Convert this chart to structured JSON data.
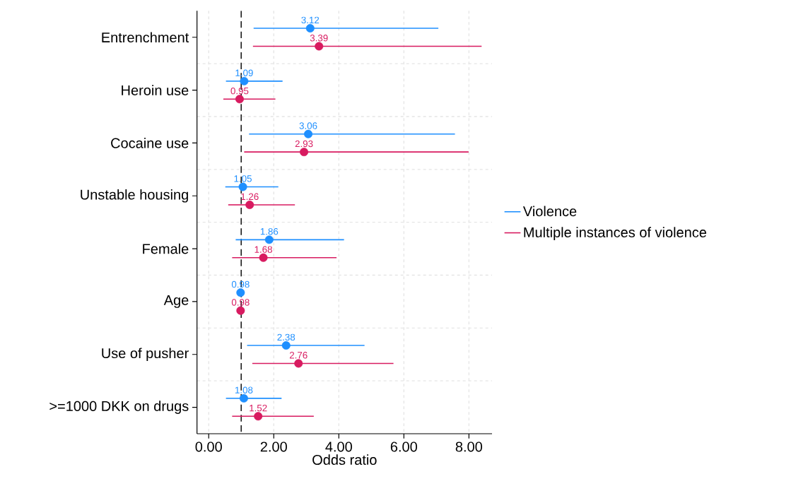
{
  "chart_data": {
    "type": "scatter",
    "orientation": "horizontal",
    "categories": [
      "Entrenchment",
      "Heroin use",
      "Cocaine use",
      "Unstable housing",
      "Female",
      "Age",
      "Use of pusher",
      ">=1000 DKK on drugs"
    ],
    "series": [
      {
        "name": "Violence",
        "color": "#1e8fff",
        "values": [
          3.12,
          1.09,
          3.06,
          1.05,
          1.86,
          0.98,
          2.38,
          1.08
        ],
        "value_labels": [
          "3.12",
          "1.09",
          "3.06",
          "1.05",
          "1.86",
          "0.98",
          "2.38",
          "1.08"
        ],
        "errors": [
          [
            1.38,
            7.06
          ],
          [
            0.53,
            2.27
          ],
          [
            1.24,
            7.57
          ],
          [
            0.51,
            2.14
          ],
          [
            0.83,
            4.16
          ],
          null,
          [
            1.18,
            4.79
          ],
          [
            0.53,
            2.24
          ]
        ]
      },
      {
        "name": "Multiple instances of violence",
        "color": "#d81b60",
        "values": [
          3.39,
          0.95,
          2.93,
          1.26,
          1.68,
          0.98,
          2.76,
          1.52
        ],
        "value_labels": [
          "3.39",
          "0.95",
          "2.93",
          "1.26",
          "1.68",
          "0.98",
          "2.76",
          "1.52"
        ],
        "errors": [
          [
            1.36,
            8.39
          ],
          [
            0.45,
            2.05
          ],
          [
            1.09,
            7.99
          ],
          [
            0.6,
            2.65
          ],
          [
            0.72,
            3.93
          ],
          null,
          [
            1.34,
            5.68
          ],
          [
            0.72,
            3.23
          ]
        ]
      }
    ],
    "xlabel": "Odds ratio",
    "xlim": [
      -0.36,
      8.71
    ],
    "xticks": [
      {
        "value": 0,
        "label": "0.00"
      },
      {
        "value": 2,
        "label": "2.00"
      },
      {
        "value": 4,
        "label": "4.00"
      },
      {
        "value": 6,
        "label": "6.00"
      },
      {
        "value": 8,
        "label": "8.00"
      }
    ],
    "ref_lines": [
      {
        "axis": "x",
        "value": 1,
        "color": "#222222",
        "line_style": "dashed"
      }
    ],
    "grid": true,
    "legend": "right",
    "marker": "circle"
  }
}
